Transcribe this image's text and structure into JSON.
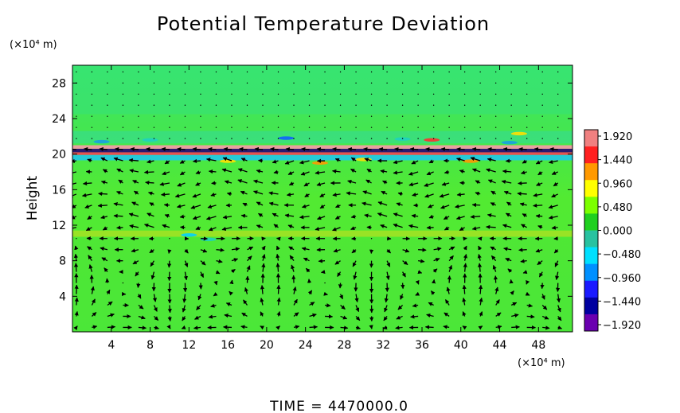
{
  "chart_data": {
    "type": "heatmap",
    "title": "Potential Temperature Deviation",
    "ylabel": "Height",
    "y_unit": "(×10⁴ m)",
    "x_unit": "(×10⁴ m)",
    "x_ticks": [
      4,
      8,
      12,
      16,
      20,
      24,
      28,
      32,
      36,
      40,
      44,
      48
    ],
    "y_ticks": [
      4,
      8,
      12,
      16,
      20,
      24,
      28
    ],
    "xlim": [
      0,
      51.5
    ],
    "ylim": [
      0,
      30
    ],
    "colorbar": {
      "ticks": [
        "1.920",
        "1.440",
        "0.960",
        "0.480",
        "0.000",
        "−0.480",
        "−0.960",
        "−1.440",
        "−1.920"
      ],
      "range": [
        -1.92,
        1.92
      ],
      "colors": [
        "#f08080",
        "#ff2020",
        "#ff9900",
        "#ffff00",
        "#7cff00",
        "#1fd01f",
        "#28c2a0",
        "#00e0ff",
        "#0090ff",
        "#1a1aff",
        "#0000a0",
        "#6a00b0"
      ]
    },
    "background_value": 0.1,
    "bands": [
      {
        "y_center": 20.3,
        "description": "strong positive/negative layer near height 20"
      },
      {
        "y_center": 11.0,
        "description": "weak band near height 11"
      }
    ],
    "vectors": "wind arrows overlay",
    "footer": "TIME  =  4470000.0"
  }
}
